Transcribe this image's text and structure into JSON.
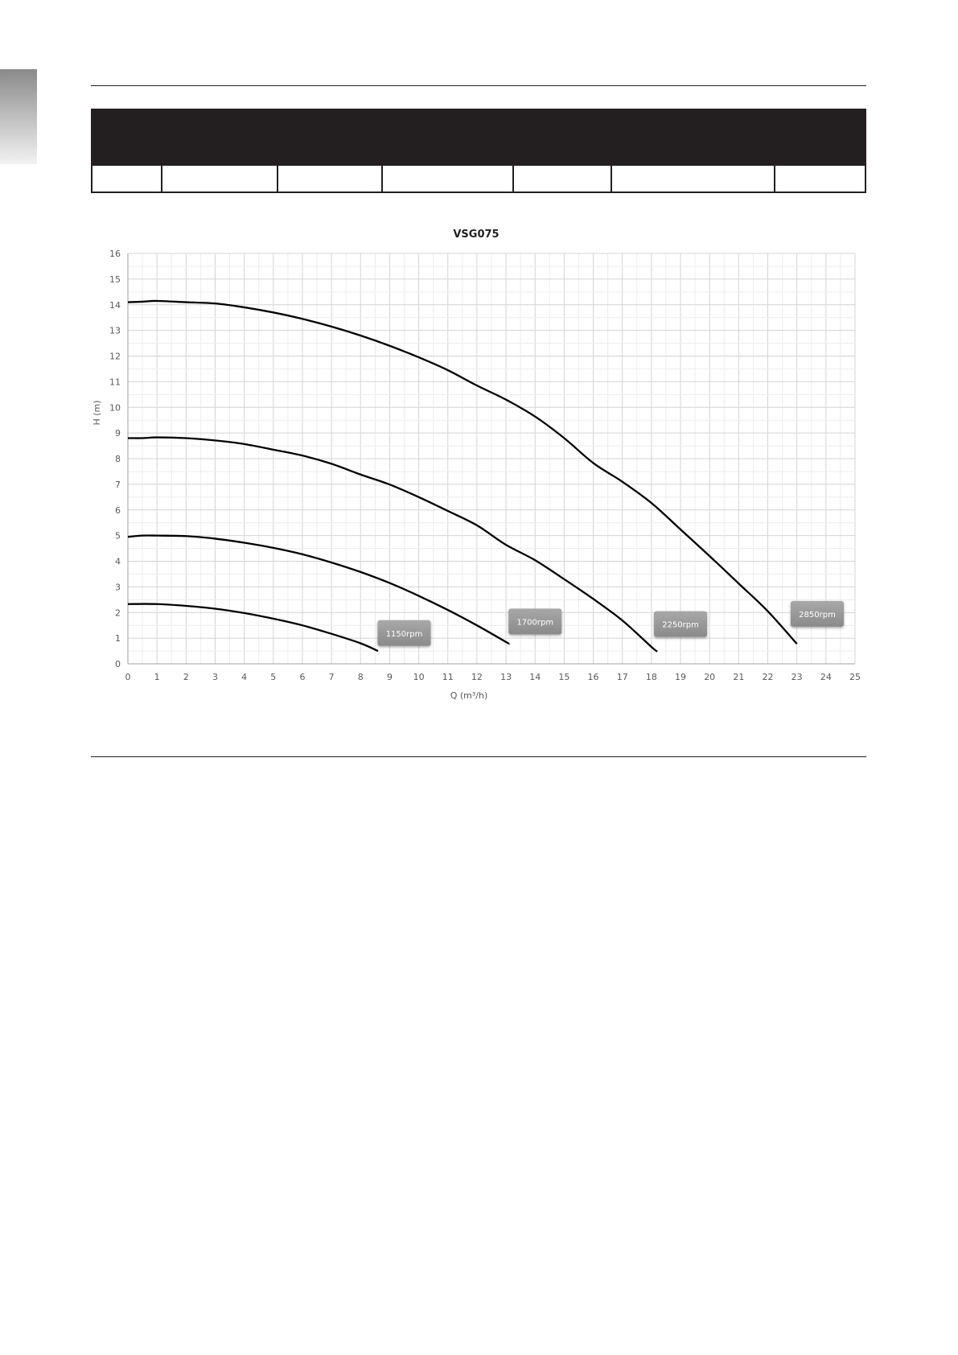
{
  "chart_data": {
    "type": "line",
    "title": "VSG075",
    "xlabel": "Q (m³/h)",
    "ylabel": "H (m)",
    "xlim": [
      0,
      25
    ],
    "ylim": [
      0,
      16
    ],
    "xticks": [
      "0",
      "1",
      "2",
      "3",
      "4",
      "5",
      "6",
      "7",
      "8",
      "9",
      "10",
      "11",
      "12",
      "13",
      "14",
      "15",
      "16",
      "17",
      "18",
      "19",
      "20",
      "21",
      "22",
      "23",
      "24",
      "25"
    ],
    "yticks": [
      "0",
      "1",
      "2",
      "3",
      "4",
      "5",
      "6",
      "7",
      "8",
      "9",
      "10",
      "11",
      "12",
      "13",
      "14",
      "15",
      "16"
    ],
    "grid": true,
    "minor_grid": true,
    "line_color": "#000000",
    "series": [
      {
        "name": "1150rpm",
        "label_at": [
          9.5,
          1.2
        ],
        "x": [
          0,
          1,
          2,
          3,
          4,
          5,
          6,
          7,
          8,
          8.6
        ],
        "y": [
          2.33,
          2.33,
          2.26,
          2.15,
          1.98,
          1.76,
          1.5,
          1.17,
          0.8,
          0.5
        ]
      },
      {
        "name": "1700rpm",
        "label_at": [
          14.0,
          1.65
        ],
        "x": [
          0,
          0.5,
          1,
          2,
          3,
          4,
          5,
          6,
          7,
          8,
          9,
          10,
          11,
          12,
          13,
          13.1
        ],
        "y": [
          4.95,
          5.0,
          5.0,
          4.98,
          4.88,
          4.72,
          4.52,
          4.27,
          3.95,
          3.58,
          3.15,
          2.65,
          2.1,
          1.5,
          0.85,
          0.78
        ]
      },
      {
        "name": "2250rpm",
        "label_at": [
          19.0,
          1.55
        ],
        "x": [
          0,
          0.5,
          1,
          2,
          3,
          4,
          5,
          6,
          7,
          8,
          9,
          10,
          11,
          12,
          13,
          14,
          15,
          16,
          17,
          18,
          18.2
        ],
        "y": [
          8.8,
          8.8,
          8.83,
          8.8,
          8.71,
          8.57,
          8.35,
          8.12,
          7.8,
          7.38,
          6.99,
          6.5,
          5.96,
          5.4,
          4.64,
          4.04,
          3.3,
          2.53,
          1.69,
          0.66,
          0.48
        ]
      },
      {
        "name": "2850rpm",
        "label_at": [
          23.7,
          1.95
        ],
        "x": [
          0,
          0.5,
          1,
          2,
          3,
          4,
          5,
          6,
          7,
          8,
          9,
          10,
          11,
          12,
          13,
          14,
          15,
          16,
          17,
          18,
          19,
          20,
          21,
          22,
          23
        ],
        "y": [
          14.1,
          14.12,
          14.15,
          14.1,
          14.05,
          13.9,
          13.7,
          13.45,
          13.15,
          12.8,
          12.4,
          11.95,
          11.45,
          10.85,
          10.3,
          9.64,
          8.8,
          7.83,
          7.1,
          6.27,
          5.24,
          4.2,
          3.13,
          2.05,
          0.78
        ]
      }
    ]
  }
}
